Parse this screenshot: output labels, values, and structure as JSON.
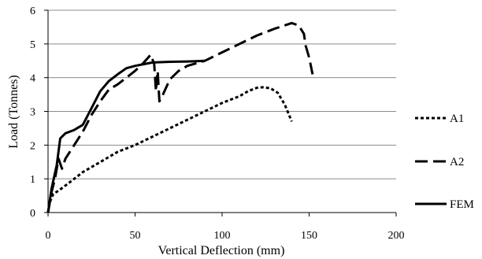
{
  "chart_data": {
    "type": "line",
    "title": "",
    "xlabel": "Vertical Deflection (mm)",
    "ylabel": "Load (Tonnes)",
    "xlim": [
      0,
      200
    ],
    "ylim": [
      0,
      6
    ],
    "xticks": [
      "0",
      "50",
      "100",
      "150",
      "200"
    ],
    "yticks": [
      "0",
      "1",
      "2",
      "3",
      "4",
      "5",
      "6"
    ],
    "grid": "horizontal",
    "legend_position": "right",
    "series": [
      {
        "name": "A1",
        "dash": "dotted",
        "points": [
          [
            0,
            0
          ],
          [
            1,
            0.3
          ],
          [
            3,
            0.55
          ],
          [
            6,
            0.65
          ],
          [
            10,
            0.8
          ],
          [
            15,
            1.0
          ],
          [
            20,
            1.2
          ],
          [
            25,
            1.35
          ],
          [
            30,
            1.5
          ],
          [
            40,
            1.8
          ],
          [
            50,
            2.0
          ],
          [
            60,
            2.25
          ],
          [
            70,
            2.5
          ],
          [
            80,
            2.75
          ],
          [
            90,
            3.0
          ],
          [
            100,
            3.25
          ],
          [
            110,
            3.45
          ],
          [
            115,
            3.6
          ],
          [
            120,
            3.7
          ],
          [
            124,
            3.72
          ],
          [
            128,
            3.68
          ],
          [
            132,
            3.55
          ],
          [
            136,
            3.2
          ],
          [
            140,
            2.7
          ]
        ]
      },
      {
        "name": "A2",
        "dash": "long-dash",
        "points": [
          [
            0,
            0
          ],
          [
            2,
            0.6
          ],
          [
            4,
            1.0
          ],
          [
            6,
            1.6
          ],
          [
            8,
            1.3
          ],
          [
            10,
            1.6
          ],
          [
            15,
            2.0
          ],
          [
            20,
            2.4
          ],
          [
            25,
            2.9
          ],
          [
            30,
            3.3
          ],
          [
            35,
            3.65
          ],
          [
            40,
            3.8
          ],
          [
            45,
            4.0
          ],
          [
            50,
            4.2
          ],
          [
            55,
            4.45
          ],
          [
            59,
            4.68
          ],
          [
            61,
            4.4
          ],
          [
            62,
            3.6
          ],
          [
            63,
            4.2
          ],
          [
            64,
            3.3
          ],
          [
            66,
            3.5
          ],
          [
            70,
            3.95
          ],
          [
            75,
            4.2
          ],
          [
            80,
            4.35
          ],
          [
            90,
            4.5
          ],
          [
            100,
            4.75
          ],
          [
            110,
            5.0
          ],
          [
            120,
            5.25
          ],
          [
            130,
            5.45
          ],
          [
            140,
            5.62
          ],
          [
            144,
            5.55
          ],
          [
            147,
            5.3
          ],
          [
            148,
            4.95
          ],
          [
            150,
            4.6
          ],
          [
            152,
            4.1
          ]
        ]
      },
      {
        "name": "FEM",
        "dash": "solid",
        "points": [
          [
            0,
            0
          ],
          [
            2,
            0.7
          ],
          [
            5,
            1.4
          ],
          [
            7,
            2.2
          ],
          [
            10,
            2.35
          ],
          [
            15,
            2.45
          ],
          [
            20,
            2.6
          ],
          [
            25,
            3.1
          ],
          [
            30,
            3.6
          ],
          [
            35,
            3.9
          ],
          [
            40,
            4.1
          ],
          [
            45,
            4.28
          ],
          [
            50,
            4.35
          ],
          [
            55,
            4.4
          ],
          [
            60,
            4.45
          ],
          [
            70,
            4.47
          ],
          [
            80,
            4.48
          ],
          [
            90,
            4.5
          ]
        ]
      }
    ]
  }
}
